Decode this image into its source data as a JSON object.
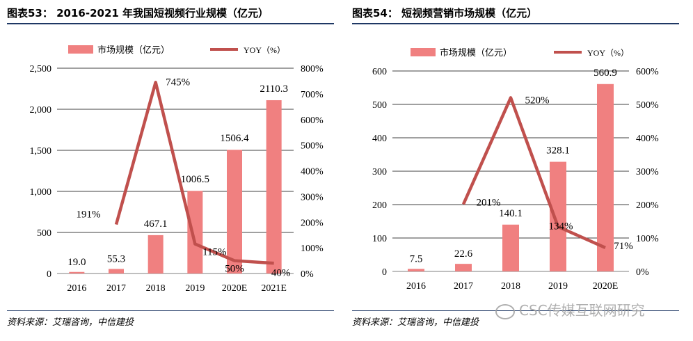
{
  "left": {
    "title": "图表53： 2016-2021 年我国短视频行业规模（亿元）",
    "source": "资料来源：艾瑞咨询，中信建投",
    "legend": {
      "bar": "市场规模（亿元）",
      "line": "YOY（%）"
    },
    "colors": {
      "bar": "#f08080",
      "line": "#c0504d"
    }
  },
  "right": {
    "title": "图表54： 短视频营销市场规模（亿元）",
    "source": "资料来源：艾瑞咨询，中信建投",
    "legend": {
      "bar": "市场规模（亿元）",
      "line": "YOY（%）"
    },
    "colors": {
      "bar": "#f08080",
      "line": "#c0504d"
    }
  },
  "watermark": "CSC传媒互联网研究",
  "chart_data": [
    {
      "type": "bar",
      "title": "2016-2021 年我国短视频行业规模（亿元）",
      "categories": [
        "2016",
        "2017",
        "2018",
        "2019",
        "2020E",
        "2021E"
      ],
      "series": [
        {
          "name": "市场规模（亿元）",
          "type": "bar",
          "axis": "left",
          "values": [
            19.0,
            55.3,
            467.1,
            1006.5,
            1506.4,
            2110.3
          ],
          "labels": [
            "19.0",
            "55.3",
            "467.1",
            "1006.5",
            "1506.4",
            "2110.3"
          ]
        },
        {
          "name": "YOY（%）",
          "type": "line",
          "axis": "right",
          "values": [
            null,
            191,
            745,
            115,
            50,
            40
          ],
          "labels": [
            "",
            "191%",
            "745%",
            "115%",
            "50%",
            "40%"
          ]
        }
      ],
      "y_left": {
        "min": 0,
        "max": 2500,
        "ticks": [
          0,
          500,
          1000,
          1500,
          2000,
          2500
        ],
        "tick_labels": [
          "0",
          "500",
          "1,000",
          "1,500",
          "2,000",
          "2,500"
        ]
      },
      "y_right": {
        "min": 0,
        "max": 800,
        "ticks": [
          0,
          100,
          200,
          300,
          400,
          500,
          600,
          700,
          800
        ],
        "tick_labels": [
          "0%",
          "100%",
          "200%",
          "300%",
          "400%",
          "500%",
          "600%",
          "700%",
          "800%"
        ]
      },
      "grid": true,
      "legend_position": "top"
    },
    {
      "type": "bar",
      "title": "短视频营销市场规模（亿元）",
      "categories": [
        "2016",
        "2017",
        "2018",
        "2019",
        "2020E"
      ],
      "series": [
        {
          "name": "市场规模（亿元）",
          "type": "bar",
          "axis": "left",
          "values": [
            7.5,
            22.6,
            140.1,
            328.1,
            560.9
          ],
          "labels": [
            "7.5",
            "22.6",
            "140.1",
            "328.1",
            "560.9"
          ]
        },
        {
          "name": "YOY（%）",
          "type": "line",
          "axis": "right",
          "values": [
            null,
            201,
            520,
            134,
            71
          ],
          "labels": [
            "",
            "201%",
            "520%",
            "134%",
            "71%"
          ]
        }
      ],
      "y_left": {
        "min": 0,
        "max": 600,
        "ticks": [
          0,
          100,
          200,
          300,
          400,
          500,
          600
        ],
        "tick_labels": [
          "0",
          "100",
          "200",
          "300",
          "400",
          "500",
          "600"
        ]
      },
      "y_right": {
        "min": 0,
        "max": 600,
        "ticks": [
          0,
          100,
          200,
          300,
          400,
          500,
          600
        ],
        "tick_labels": [
          "0%",
          "100%",
          "200%",
          "300%",
          "400%",
          "500%",
          "600%"
        ]
      },
      "grid": true,
      "legend_position": "top"
    }
  ]
}
